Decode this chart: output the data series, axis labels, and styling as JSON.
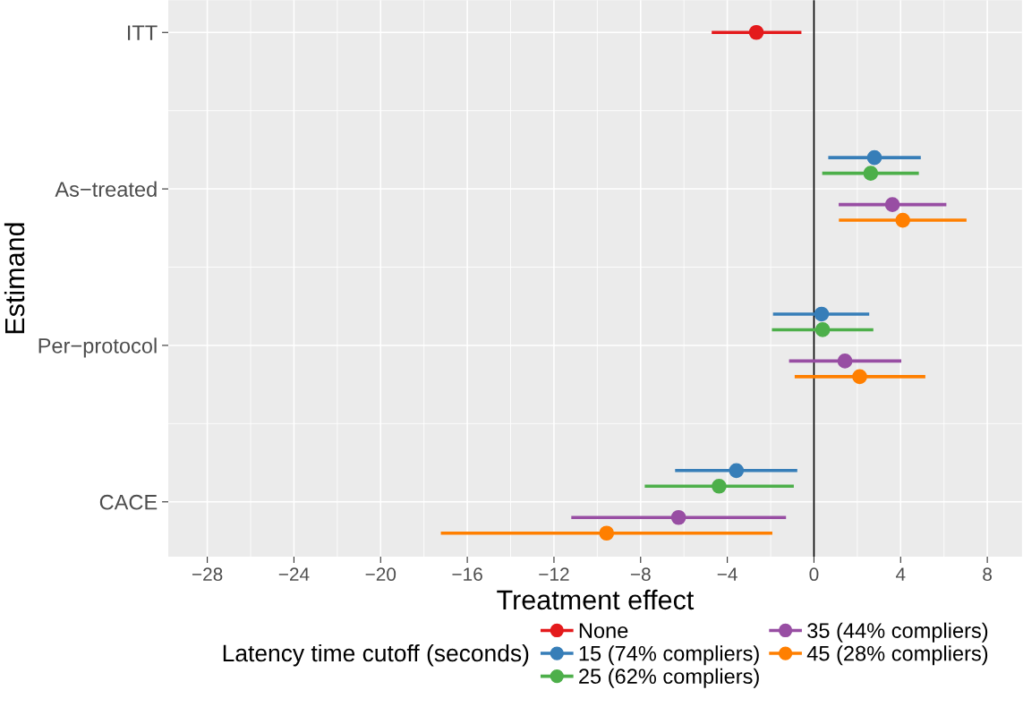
{
  "chart_data": {
    "type": "scatter",
    "orientation": "horizontal",
    "xlabel": "Treatment effect",
    "ylabel": "Estimand",
    "legend_title": "Latency time cutoff (seconds)",
    "categories": [
      "ITT",
      "As−treated",
      "Per−protocol",
      "CACE"
    ],
    "series": [
      {
        "name": "None",
        "color": "#e41a1c",
        "values": [
          -2.66,
          null,
          null,
          null
        ],
        "errors": [
          [
            -4.72,
            -0.58
          ],
          null,
          null,
          null
        ]
      },
      {
        "name": "15 (74% compliers)",
        "color": "#377eb8",
        "values": [
          null,
          2.79,
          0.35,
          -3.58
        ],
        "errors": [
          null,
          [
            0.66,
            4.93
          ],
          [
            -1.89,
            2.55
          ],
          [
            -6.41,
            -0.77
          ]
        ]
      },
      {
        "name": "25 (62% compliers)",
        "color": "#4daf4a",
        "values": [
          null,
          2.62,
          0.4,
          -4.38
        ],
        "errors": [
          null,
          [
            0.38,
            4.84
          ],
          [
            -1.94,
            2.74
          ],
          [
            -7.81,
            -0.93
          ]
        ]
      },
      {
        "name": "35 (44% compliers)",
        "color": "#984ea3",
        "values": [
          null,
          3.62,
          1.43,
          -6.25
        ],
        "errors": [
          null,
          [
            1.14,
            6.11
          ],
          [
            -1.15,
            4.03
          ],
          [
            -11.2,
            -1.29
          ]
        ]
      },
      {
        "name": "45 (28% compliers)",
        "color": "#ff7f00",
        "values": [
          null,
          4.1,
          2.11,
          -9.57
        ],
        "errors": [
          null,
          [
            1.15,
            7.04
          ],
          [
            -0.89,
            5.14
          ],
          [
            -17.22,
            -1.92
          ]
        ]
      }
    ],
    "xlim": [
      -29.8,
      9.6
    ],
    "xticks": [
      -28,
      -24,
      -20,
      -16,
      -12,
      -8,
      -4,
      0,
      4,
      8
    ],
    "ref_lines": [
      {
        "axis": "x",
        "value": 0,
        "color": "#000000"
      }
    ],
    "grid": true,
    "legend": "bottom",
    "marker": "circle"
  }
}
